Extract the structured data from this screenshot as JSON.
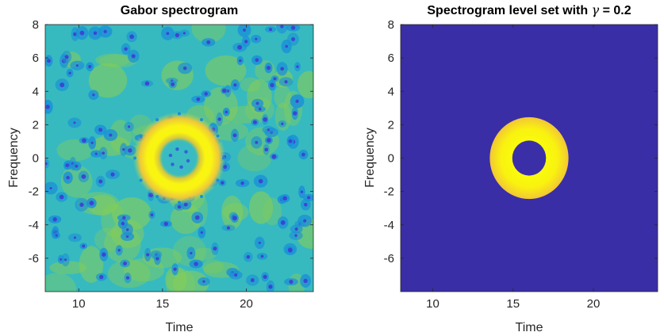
{
  "chart_data": [
    {
      "type": "heatmap",
      "title": "Gabor spectrogram",
      "xlabel": "Time",
      "ylabel": "Frequency",
      "xlim": [
        8,
        24
      ],
      "ylim": [
        -8,
        8
      ],
      "xticks": [
        10,
        15,
        20
      ],
      "yticks": [
        -6,
        -4,
        -2,
        0,
        2,
        4,
        6,
        8
      ],
      "colormap": "parula",
      "ring": {
        "center_time": 16,
        "center_frequency": 0,
        "inner_radius": 1.0,
        "outer_radius": 2.4
      },
      "grid": false
    },
    {
      "type": "heatmap",
      "title_prefix": "Spectrogram level set with ",
      "title_symbol": "γ",
      "title_suffix": " = 0.2",
      "gamma": 0.2,
      "xlabel": "Time",
      "ylabel": "Frequency",
      "xlim": [
        8,
        24
      ],
      "ylim": [
        -8,
        8
      ],
      "xticks": [
        10,
        15,
        20
      ],
      "yticks": [
        -6,
        -4,
        -2,
        0,
        2,
        4,
        6,
        8
      ],
      "ring": {
        "center_time": 16,
        "center_frequency": 0,
        "inner_radius": 1.05,
        "outer_radius": 2.45
      },
      "grid": false
    }
  ],
  "colors": {
    "background_low": "#3b2fa8",
    "field_mid": "#33b8c0",
    "field_high": "#84cc5a",
    "ring_outer": "#f7c93a",
    "ring_peak": "#f9fb0e",
    "blob_dark": "#3d3ed2",
    "blob_mid": "#1a8fd8"
  }
}
